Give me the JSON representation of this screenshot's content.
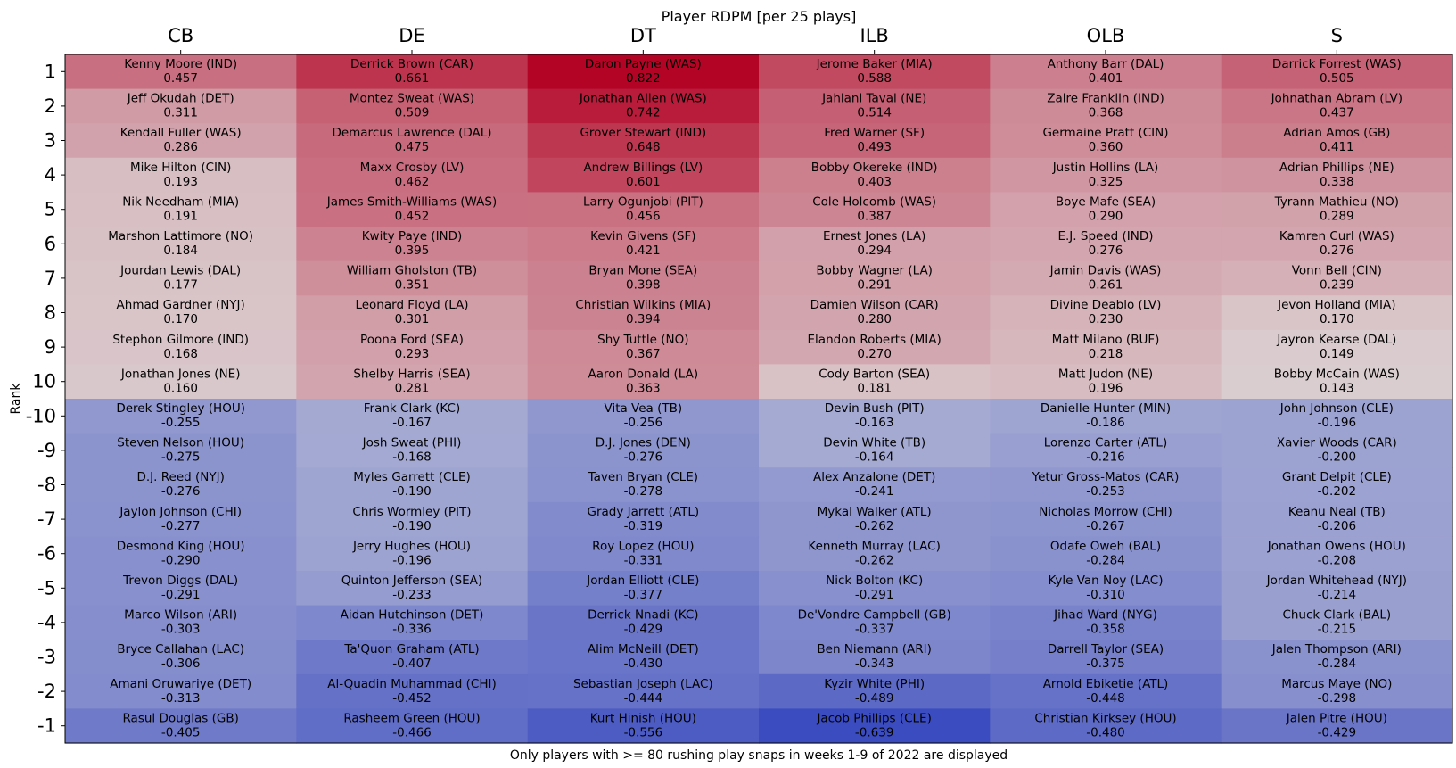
{
  "chart_data": {
    "type": "heatmap",
    "title": "Player RDPM [per 25 plays]",
    "xlabel": "Only players with >= 80 rushing play snaps in weeks 1-9 of 2022 are displayed",
    "ylabel": "Rank",
    "columns": [
      "CB",
      "DE",
      "DT",
      "ILB",
      "OLB",
      "S"
    ],
    "rows": [
      "1",
      "2",
      "3",
      "4",
      "5",
      "6",
      "7",
      "8",
      "9",
      "10",
      "-10",
      "-9",
      "-8",
      "-7",
      "-6",
      "-5",
      "-4",
      "-3",
      "-2",
      "-1"
    ],
    "color_scale": {
      "min": -0.639,
      "max": 0.822,
      "low_color": "#3b4cc0",
      "mid_color": "#dddcdc",
      "high_color": "#b40426"
    },
    "cells": [
      [
        [
          "Kenny Moore (IND)",
          0.457
        ],
        [
          "Derrick Brown (CAR)",
          0.661
        ],
        [
          "Daron Payne (WAS)",
          0.822
        ],
        [
          "Jerome Baker (MIA)",
          0.588
        ],
        [
          "Anthony Barr (DAL)",
          0.401
        ],
        [
          "Darrick Forrest (WAS)",
          0.505
        ]
      ],
      [
        [
          "Jeff Okudah (DET)",
          0.311
        ],
        [
          "Montez Sweat (WAS)",
          0.509
        ],
        [
          "Jonathan Allen (WAS)",
          0.742
        ],
        [
          "Jahlani Tavai (NE)",
          0.514
        ],
        [
          "Zaire Franklin (IND)",
          0.368
        ],
        [
          "Johnathan Abram (LV)",
          0.437
        ]
      ],
      [
        [
          "Kendall Fuller (WAS)",
          0.286
        ],
        [
          "Demarcus Lawrence (DAL)",
          0.475
        ],
        [
          "Grover Stewart (IND)",
          0.648
        ],
        [
          "Fred Warner (SF)",
          0.493
        ],
        [
          "Germaine Pratt (CIN)",
          0.36
        ],
        [
          "Adrian Amos (GB)",
          0.411
        ]
      ],
      [
        [
          "Mike Hilton (CIN)",
          0.193
        ],
        [
          "Maxx Crosby (LV)",
          0.462
        ],
        [
          "Andrew Billings (LV)",
          0.601
        ],
        [
          "Bobby Okereke (IND)",
          0.403
        ],
        [
          "Justin Hollins (LA)",
          0.325
        ],
        [
          "Adrian Phillips (NE)",
          0.338
        ]
      ],
      [
        [
          "Nik Needham (MIA)",
          0.191
        ],
        [
          "James Smith-Williams (WAS)",
          0.452
        ],
        [
          "Larry Ogunjobi (PIT)",
          0.456
        ],
        [
          "Cole Holcomb (WAS)",
          0.387
        ],
        [
          "Boye Mafe (SEA)",
          0.29
        ],
        [
          "Tyrann Mathieu (NO)",
          0.289
        ]
      ],
      [
        [
          "Marshon Lattimore (NO)",
          0.184
        ],
        [
          "Kwity Paye (IND)",
          0.395
        ],
        [
          "Kevin Givens (SF)",
          0.421
        ],
        [
          "Ernest Jones (LA)",
          0.294
        ],
        [
          "E.J. Speed (IND)",
          0.276
        ],
        [
          "Kamren Curl (WAS)",
          0.276
        ]
      ],
      [
        [
          "Jourdan Lewis (DAL)",
          0.177
        ],
        [
          "William Gholston (TB)",
          0.351
        ],
        [
          "Bryan Mone (SEA)",
          0.398
        ],
        [
          "Bobby Wagner (LA)",
          0.291
        ],
        [
          "Jamin Davis (WAS)",
          0.261
        ],
        [
          "Vonn Bell (CIN)",
          0.239
        ]
      ],
      [
        [
          "Ahmad Gardner (NYJ)",
          0.17
        ],
        [
          "Leonard Floyd (LA)",
          0.301
        ],
        [
          "Christian Wilkins (MIA)",
          0.394
        ],
        [
          "Damien Wilson (CAR)",
          0.28
        ],
        [
          "Divine Deablo (LV)",
          0.23
        ],
        [
          "Jevon Holland (MIA)",
          0.17
        ]
      ],
      [
        [
          "Stephon Gilmore (IND)",
          0.168
        ],
        [
          "Poona Ford (SEA)",
          0.293
        ],
        [
          "Shy Tuttle (NO)",
          0.367
        ],
        [
          "Elandon Roberts (MIA)",
          0.27
        ],
        [
          "Matt Milano (BUF)",
          0.218
        ],
        [
          "Jayron Kearse (DAL)",
          0.149
        ]
      ],
      [
        [
          "Jonathan Jones (NE)",
          0.16
        ],
        [
          "Shelby Harris (SEA)",
          0.281
        ],
        [
          "Aaron Donald (LA)",
          0.363
        ],
        [
          "Cody Barton (SEA)",
          0.181
        ],
        [
          "Matt Judon (NE)",
          0.196
        ],
        [
          "Bobby McCain (WAS)",
          0.143
        ]
      ],
      [
        [
          "Derek Stingley (HOU)",
          -0.255
        ],
        [
          "Frank Clark (KC)",
          -0.167
        ],
        [
          "Vita Vea (TB)",
          -0.256
        ],
        [
          "Devin Bush (PIT)",
          -0.163
        ],
        [
          "Danielle Hunter (MIN)",
          -0.186
        ],
        [
          "John Johnson (CLE)",
          -0.196
        ]
      ],
      [
        [
          "Steven Nelson (HOU)",
          -0.275
        ],
        [
          "Josh Sweat (PHI)",
          -0.168
        ],
        [
          "D.J. Jones (DEN)",
          -0.276
        ],
        [
          "Devin White (TB)",
          -0.164
        ],
        [
          "Lorenzo Carter (ATL)",
          -0.216
        ],
        [
          "Xavier Woods (CAR)",
          -0.2
        ]
      ],
      [
        [
          "D.J. Reed (NYJ)",
          -0.276
        ],
        [
          "Myles Garrett (CLE)",
          -0.19
        ],
        [
          "Taven Bryan (CLE)",
          -0.278
        ],
        [
          "Alex Anzalone (DET)",
          -0.241
        ],
        [
          "Yetur Gross-Matos (CAR)",
          -0.253
        ],
        [
          "Grant Delpit (CLE)",
          -0.202
        ]
      ],
      [
        [
          "Jaylon Johnson (CHI)",
          -0.277
        ],
        [
          "Chris Wormley (PIT)",
          -0.19
        ],
        [
          "Grady Jarrett (ATL)",
          -0.319
        ],
        [
          "Mykal Walker (ATL)",
          -0.262
        ],
        [
          "Nicholas Morrow (CHI)",
          -0.267
        ],
        [
          "Keanu Neal (TB)",
          -0.206
        ]
      ],
      [
        [
          "Desmond King (HOU)",
          -0.29
        ],
        [
          "Jerry Hughes (HOU)",
          -0.196
        ],
        [
          "Roy Lopez (HOU)",
          -0.331
        ],
        [
          "Kenneth Murray (LAC)",
          -0.262
        ],
        [
          "Odafe Oweh (BAL)",
          -0.284
        ],
        [
          "Jonathan Owens (HOU)",
          -0.208
        ]
      ],
      [
        [
          "Trevon Diggs (DAL)",
          -0.291
        ],
        [
          "Quinton Jefferson (SEA)",
          -0.233
        ],
        [
          "Jordan Elliott (CLE)",
          -0.377
        ],
        [
          "Nick Bolton (KC)",
          -0.291
        ],
        [
          "Kyle Van Noy (LAC)",
          -0.31
        ],
        [
          "Jordan Whitehead (NYJ)",
          -0.214
        ]
      ],
      [
        [
          "Marco Wilson (ARI)",
          -0.303
        ],
        [
          "Aidan Hutchinson (DET)",
          -0.336
        ],
        [
          "Derrick Nnadi (KC)",
          -0.429
        ],
        [
          "De'Vondre Campbell (GB)",
          -0.337
        ],
        [
          "Jihad Ward (NYG)",
          -0.358
        ],
        [
          "Chuck Clark (BAL)",
          -0.215
        ]
      ],
      [
        [
          "Bryce Callahan (LAC)",
          -0.306
        ],
        [
          "Ta'Quon Graham (ATL)",
          -0.407
        ],
        [
          "Alim McNeill (DET)",
          -0.43
        ],
        [
          "Ben Niemann (ARI)",
          -0.343
        ],
        [
          "Darrell Taylor (SEA)",
          -0.375
        ],
        [
          "Jalen Thompson (ARI)",
          -0.284
        ]
      ],
      [
        [
          "Amani Oruwariye (DET)",
          -0.313
        ],
        [
          "Al-Quadin Muhammad (CHI)",
          -0.452
        ],
        [
          "Sebastian Joseph (LAC)",
          -0.444
        ],
        [
          "Kyzir White (PHI)",
          -0.489
        ],
        [
          "Arnold Ebiketie (ATL)",
          -0.448
        ],
        [
          "Marcus Maye (NO)",
          -0.298
        ]
      ],
      [
        [
          "Rasul Douglas (GB)",
          -0.405
        ],
        [
          "Rasheem Green (HOU)",
          -0.466
        ],
        [
          "Kurt Hinish (HOU)",
          -0.556
        ],
        [
          "Jacob Phillips (CLE)",
          -0.639
        ],
        [
          "Christian Kirksey (HOU)",
          -0.48
        ],
        [
          "Jalen Pitre (HOU)",
          -0.429
        ]
      ]
    ]
  }
}
